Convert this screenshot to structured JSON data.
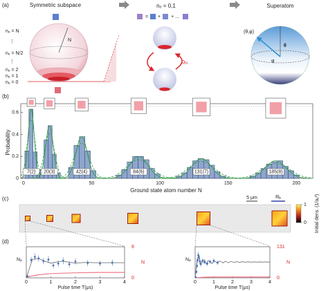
{
  "panel_a": {
    "label": "(a)",
    "left": {
      "title": "Symmetric subspace",
      "levels": [
        "nₑ = N",
        "⋮",
        "nₑ = N/2",
        "⋮",
        "nₑ = 2",
        "nₑ = 1",
        "nₑ = 0"
      ],
      "radius_label": "N"
    },
    "middle": {
      "title": "nₑ = 0,1",
      "equals": "=",
      "plus": "+",
      "plus_more": "+ ...",
      "coupling": {
        "symbol": "Ω",
        "sub": "N"
      }
    },
    "right": {
      "title": "Superatom",
      "state": "(θ,φ)",
      "theta": "θ",
      "phi": "φ"
    }
  },
  "panel_b": {
    "label": "(b)",
    "type": "histogram",
    "xlabel": "Ground state atom number N",
    "ylabel": "Probability",
    "xlim": [
      -2,
      212
    ],
    "xticks": [
      0,
      50,
      100,
      150,
      200
    ],
    "ylim": [
      0,
      0.68
    ],
    "yticks": [
      0,
      0.2,
      0.4,
      0.6
    ],
    "color": "#8fa6cc",
    "groups": [
      {
        "bins": [
          1,
          4,
          7,
          10,
          13
        ],
        "counts": [
          0.25,
          0.63,
          0.24,
          0.04
        ],
        "annotation": "7(2)"
      },
      {
        "bins": [
          12,
          15,
          18,
          21,
          24,
          27
        ],
        "counts": [
          0.08,
          0.35,
          0.48,
          0.22,
          0.05
        ],
        "annotation": "20(3)"
      },
      {
        "bins": [
          33,
          37,
          41,
          45,
          49,
          53
        ],
        "counts": [
          0.1,
          0.3,
          0.38,
          0.25,
          0.07
        ],
        "annotation": "42(4)"
      },
      {
        "bins": [
          68,
          72,
          76,
          80,
          84,
          88,
          92,
          96,
          100
        ],
        "counts": [
          0.03,
          0.08,
          0.15,
          0.2,
          0.2,
          0.17,
          0.09,
          0.04
        ],
        "annotation": "84(6)"
      },
      {
        "bins": [
          112,
          116,
          120,
          124,
          128,
          132,
          136,
          140,
          144,
          148
        ],
        "counts": [
          0.02,
          0.05,
          0.1,
          0.16,
          0.18,
          0.17,
          0.12,
          0.06,
          0.02
        ],
        "annotation": "131(7)"
      },
      {
        "bins": [
          166,
          170,
          174,
          178,
          182,
          186,
          190,
          194,
          198,
          202
        ],
        "counts": [
          0.02,
          0.05,
          0.09,
          0.13,
          0.15,
          0.16,
          0.11,
          0.07,
          0.03
        ],
        "annotation": "185(8)"
      }
    ]
  },
  "panel_c": {
    "label": "(c)",
    "scale_bar": "5 μm",
    "blockade_radius": {
      "symbol": "R",
      "sub": "b"
    },
    "colorbar_label": "Initial dens. (1/aₓ²)",
    "colorbar_ticks": [
      0,
      1
    ]
  },
  "panel_d": {
    "label": "(d)",
    "plots": [
      {
        "type": "line",
        "ylabel": {
          "symbol": "N",
          "sub": "e"
        },
        "y2label": "N",
        "xlabel": "Pulse time T(μs)",
        "xlim": [
          0,
          4
        ],
        "xticks": [
          0,
          1,
          2,
          3,
          4
        ],
        "y2lim": [
          0,
          8
        ],
        "y2ticks": [
          0,
          8
        ],
        "points": {
          "x": [
            0.05,
            0.2,
            0.35,
            0.5,
            0.7,
            0.9,
            1.1,
            1.3,
            1.5,
            1.75,
            2.0,
            2.5,
            3.0,
            3.5
          ],
          "values": [
            0.4,
            4.6,
            5.4,
            5.0,
            4.3,
            4.7,
            3.2,
            3.7,
            4.4,
            3.5,
            4.2,
            3.8,
            3.7,
            3.9
          ],
          "errors": [
            0.3,
            0.8,
            0.9,
            0.8,
            0.8,
            0.9,
            0.7,
            0.8,
            0.9,
            0.8,
            0.8,
            0.8,
            0.7,
            0.8
          ]
        },
        "fit": {
          "x": [
            0,
            0.25,
            0.5,
            0.75,
            1,
            1.25,
            1.5,
            1.75,
            2,
            2.25,
            2.5,
            2.75,
            3,
            3.25,
            3.5,
            3.75,
            4
          ],
          "values": [
            0,
            4.8,
            5.0,
            4.3,
            3.8,
            4.1,
            4.3,
            4.0,
            3.8,
            3.9,
            4.0,
            3.9,
            3.9,
            3.9,
            3.9,
            3.9,
            3.9
          ]
        },
        "atom_number": {
          "x": [
            0,
            0.5,
            1,
            2,
            3,
            4
          ],
          "values": [
            0.2,
            0.8,
            1.1,
            1.3,
            1.4,
            1.4
          ]
        }
      },
      {
        "type": "line",
        "ylabel": {
          "symbol": "N",
          "sub": "e"
        },
        "y2label": "N",
        "xlabel": "Pulse time T(μs)",
        "xlim": [
          0,
          4
        ],
        "xticks": [
          0,
          1,
          2,
          3,
          4
        ],
        "y2lim": [
          0,
          131
        ],
        "y2ticks": [
          0,
          131
        ],
        "points": {
          "x": [
            0.03,
            0.07,
            0.1,
            0.13,
            0.17,
            0.2,
            0.25,
            0.3,
            0.4,
            0.5,
            0.65,
            0.8,
            1.0,
            1.2
          ],
          "values": [
            3,
            25,
            50,
            75,
            95,
            88,
            70,
            58,
            72,
            66,
            60,
            68,
            72,
            64
          ],
          "errors": [
            4,
            8,
            10,
            12,
            14,
            12,
            12,
            10,
            10,
            9,
            9,
            9,
            10,
            9
          ]
        },
        "fit": {
          "x": [
            0,
            0.1,
            0.2,
            0.3,
            0.4,
            0.5,
            0.6,
            0.7,
            0.8,
            0.9,
            1.0,
            1.1,
            1.2,
            1.3,
            1.4,
            1.5,
            1.6,
            1.7,
            1.8,
            1.9,
            2.0,
            2.1,
            2.2,
            2.3,
            2.4,
            2.5,
            2.6,
            2.7,
            2.8,
            2.9,
            3.0,
            3.1,
            3.2,
            3.3,
            3.4,
            3.5,
            3.6,
            3.7,
            3.8,
            3.9,
            4.0
          ],
          "values": [
            0,
            75,
            92,
            58,
            74,
            76,
            58,
            72,
            70,
            60,
            72,
            68,
            62,
            71,
            68,
            63,
            70,
            67,
            64,
            69,
            67,
            65,
            68,
            67,
            65,
            68,
            67,
            66,
            67,
            67,
            66,
            67,
            67,
            66,
            67,
            67,
            66,
            67,
            67,
            66,
            67
          ]
        },
        "atom_number": {
          "x": [
            0,
            0.5,
            1,
            2,
            3,
            4
          ],
          "values": [
            0,
            3,
            4,
            4,
            4,
            4
          ]
        }
      }
    ]
  }
}
